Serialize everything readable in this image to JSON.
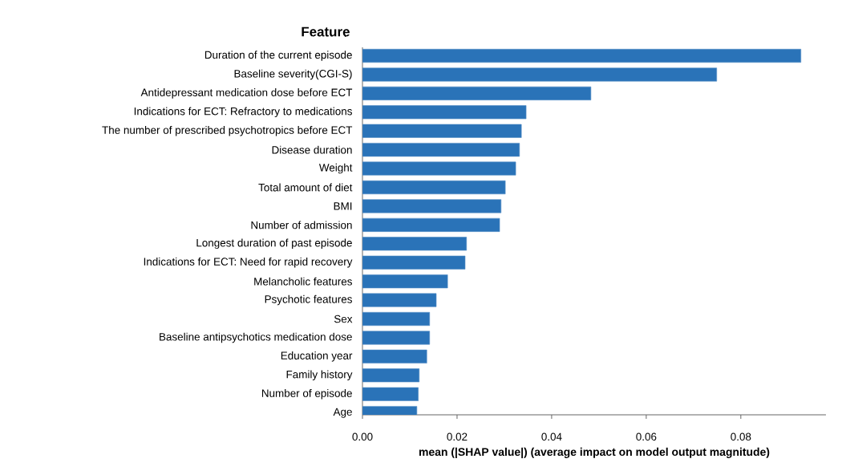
{
  "chart_data": {
    "type": "bar",
    "orientation": "horizontal",
    "title": "Feature",
    "xlabel": "mean (|SHAP value|) (average impact on model output magnitude)",
    "categories": [
      "Duration of the current episode",
      "Baseline severity(CGI-S)",
      "Antidepressant medication dose before ECT",
      "Indications for ECT: Refractory to medications",
      "The number of prescribed psychotropics before ECT",
      "Disease duration",
      "Weight",
      "Total amount of diet",
      "BMI",
      "Number of admission",
      "Longest duration of past episode",
      "Indications for ECT: Need for rapid recovery",
      "Melancholic features",
      "Psychotic features",
      "Sex",
      "Baseline antipsychotics medication dose",
      "Education year",
      "Family history",
      "Number of episode",
      "Age"
    ],
    "values": [
      0.0927,
      0.0749,
      0.0483,
      0.0346,
      0.0336,
      0.0332,
      0.0324,
      0.0302,
      0.0293,
      0.029,
      0.022,
      0.0217,
      0.018,
      0.0156,
      0.0142,
      0.0142,
      0.0136,
      0.012,
      0.0118,
      0.0115
    ],
    "color": "#2a73b8",
    "xlim": [
      0,
      0.098
    ],
    "xticks": [
      {
        "value": 0,
        "label": "0.00"
      },
      {
        "value": 0.02,
        "label": "0.02"
      },
      {
        "value": 0.04,
        "label": "0.04"
      },
      {
        "value": 0.06,
        "label": "0.06"
      },
      {
        "value": 0.08,
        "label": "0.08"
      }
    ],
    "grid": false
  }
}
